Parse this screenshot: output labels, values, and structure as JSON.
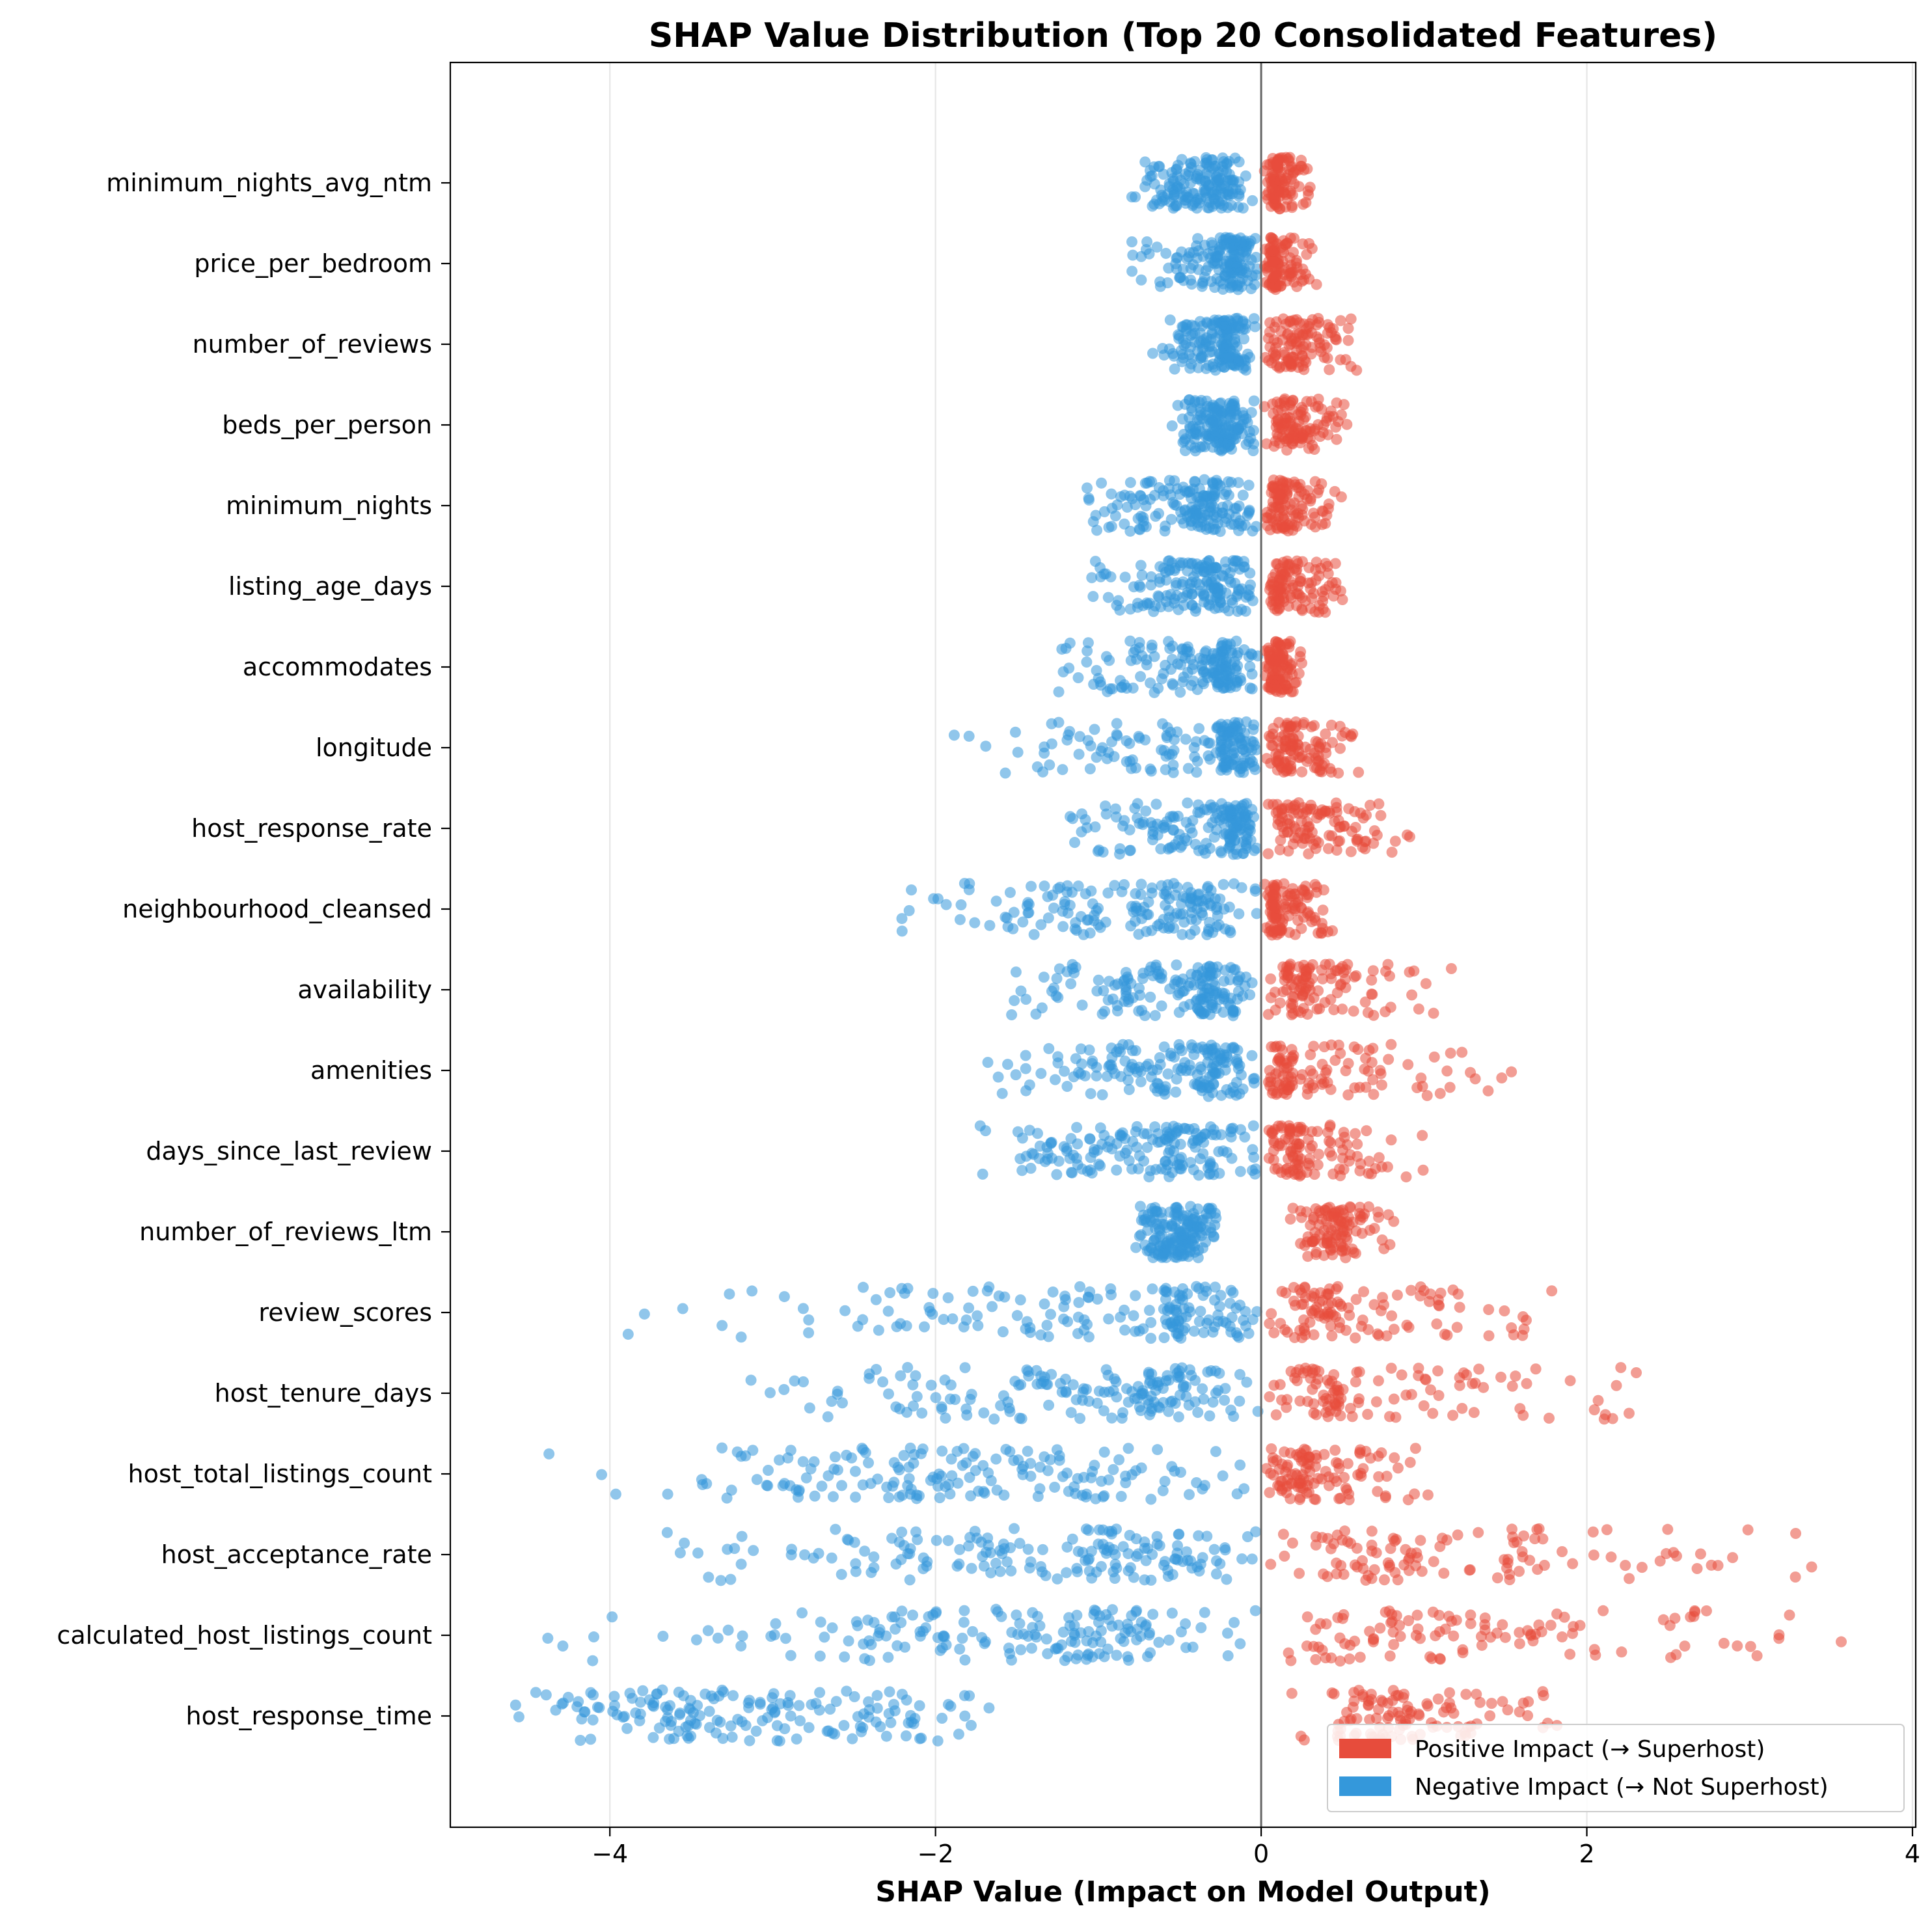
{
  "chart_data": {
    "type": "scatter",
    "title": "SHAP Value Distribution (Top 20 Consolidated Features)",
    "xlabel": "SHAP Value (Impact on Model Output)",
    "ylabel": "",
    "xlim": [
      -4.98,
      4.02
    ],
    "xticks": [
      -4,
      -2,
      0,
      2,
      4
    ],
    "xtick_labels": [
      "−4",
      "−2",
      "0",
      "2",
      "4"
    ],
    "grid": "vertical gridlines at ticks",
    "zero_line": 0,
    "colors": {
      "positive": "#e74c3c",
      "negative": "#3498db"
    },
    "legend": {
      "placement": "lower-right",
      "entries": [
        {
          "label": "Positive Impact (→ Superhost)",
          "color": "#e74c3c"
        },
        {
          "label": "Negative Impact (→ Not Superhost)",
          "color": "#3498db"
        }
      ]
    },
    "features": [
      {
        "name": "minimum_nights_avg_ntm",
        "negative_range": [
          -0.85,
          -0.05
        ],
        "positive_range": [
          0.02,
          0.32
        ],
        "negative_center": -0.35,
        "positive_center": 0.12
      },
      {
        "name": "price_per_bedroom",
        "negative_range": [
          -0.8,
          -0.02
        ],
        "positive_range": [
          0.02,
          0.35
        ],
        "negative_center": -0.2,
        "positive_center": 0.1
      },
      {
        "name": "number_of_reviews",
        "negative_range": [
          -0.7,
          -0.02
        ],
        "positive_range": [
          0.02,
          0.6
        ],
        "negative_center": -0.25,
        "positive_center": 0.2
      },
      {
        "name": "beds_per_person",
        "negative_range": [
          -0.55,
          -0.02
        ],
        "positive_range": [
          0.02,
          0.55
        ],
        "negative_center": -0.25,
        "positive_center": 0.2
      },
      {
        "name": "minimum_nights",
        "negative_range": [
          -1.1,
          -0.02
        ],
        "positive_range": [
          0.02,
          0.55
        ],
        "negative_center": -0.4,
        "positive_center": 0.15
      },
      {
        "name": "listing_age_days",
        "negative_range": [
          -1.05,
          -0.02
        ],
        "positive_range": [
          0.02,
          0.5
        ],
        "negative_center": -0.35,
        "positive_center": 0.15
      },
      {
        "name": "accommodates",
        "negative_range": [
          -1.25,
          -0.02
        ],
        "positive_range": [
          0.02,
          0.25
        ],
        "negative_center": -0.3,
        "positive_center": 0.1
      },
      {
        "name": "longitude",
        "negative_range": [
          -2.0,
          -0.02
        ],
        "positive_range": [
          0.02,
          0.65
        ],
        "negative_center": -0.25,
        "positive_center": 0.2
      },
      {
        "name": "host_response_rate",
        "negative_range": [
          -1.2,
          -0.02
        ],
        "positive_range": [
          0.02,
          0.95
        ],
        "negative_center": -0.2,
        "positive_center": 0.3
      },
      {
        "name": "neighbourhood_cleansed",
        "negative_range": [
          -2.25,
          -0.02
        ],
        "positive_range": [
          0.02,
          0.45
        ],
        "negative_center": -0.6,
        "positive_center": 0.1
      },
      {
        "name": "availability",
        "negative_range": [
          -1.6,
          -0.02
        ],
        "positive_range": [
          0.02,
          1.25
        ],
        "negative_center": -0.4,
        "positive_center": 0.3
      },
      {
        "name": "amenities",
        "negative_range": [
          -1.7,
          -0.02
        ],
        "positive_range": [
          0.02,
          1.65
        ],
        "negative_center": -0.4,
        "positive_center": 0.2
      },
      {
        "name": "days_since_last_review",
        "negative_range": [
          -1.75,
          -0.02
        ],
        "positive_range": [
          0.02,
          1.05
        ],
        "negative_center": -0.6,
        "positive_center": 0.25
      },
      {
        "name": "number_of_reviews_ltm",
        "negative_range": [
          -0.8,
          -0.25
        ],
        "positive_range": [
          0.15,
          0.85
        ],
        "negative_center": -0.5,
        "positive_center": 0.45
      },
      {
        "name": "review_scores",
        "negative_range": [
          -4.0,
          -0.02
        ],
        "positive_range": [
          0.02,
          1.9
        ],
        "negative_center": -0.6,
        "positive_center": 0.5
      },
      {
        "name": "host_tenure_days",
        "negative_range": [
          -3.25,
          -0.02
        ],
        "positive_range": [
          0.02,
          2.75
        ],
        "negative_center": -0.8,
        "positive_center": 0.5
      },
      {
        "name": "host_total_listings_count",
        "negative_range": [
          -4.45,
          -0.02
        ],
        "positive_range": [
          0.02,
          1.05
        ],
        "negative_center": -1.8,
        "positive_center": 0.3
      },
      {
        "name": "host_acceptance_rate",
        "negative_range": [
          -3.7,
          -0.02
        ],
        "positive_range": [
          0.05,
          3.4
        ],
        "negative_center": -1.1,
        "positive_center": 1.0
      },
      {
        "name": "calculated_host_listings_count",
        "negative_range": [
          -4.45,
          -0.02
        ],
        "positive_range": [
          0.02,
          3.6
        ],
        "negative_center": -1.2,
        "positive_center": 1.2
      },
      {
        "name": "host_response_time",
        "negative_range": [
          -4.6,
          -1.6
        ],
        "positive_range": [
          0.1,
          2.0
        ],
        "negative_center": -3.2,
        "positive_center": 0.9
      }
    ]
  }
}
